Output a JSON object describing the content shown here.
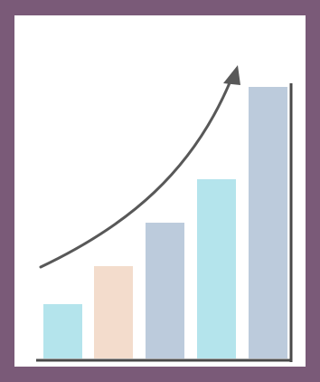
{
  "illustration": {
    "subject": "growth-bar-chart-icon",
    "frame_color": "#7a5a78",
    "panel_color": "#ffffff",
    "axis_color": "#4a4a4a",
    "arrow_color": "#585858",
    "bars": [
      {
        "level": 0.2,
        "color": "#b4e4ec"
      },
      {
        "level": 0.34,
        "color": "#f3dccc"
      },
      {
        "level": 0.5,
        "color": "#bccbdc"
      },
      {
        "level": 0.66,
        "color": "#b4e4ec"
      },
      {
        "level": 1.0,
        "color": "#bccbdc"
      }
    ]
  }
}
